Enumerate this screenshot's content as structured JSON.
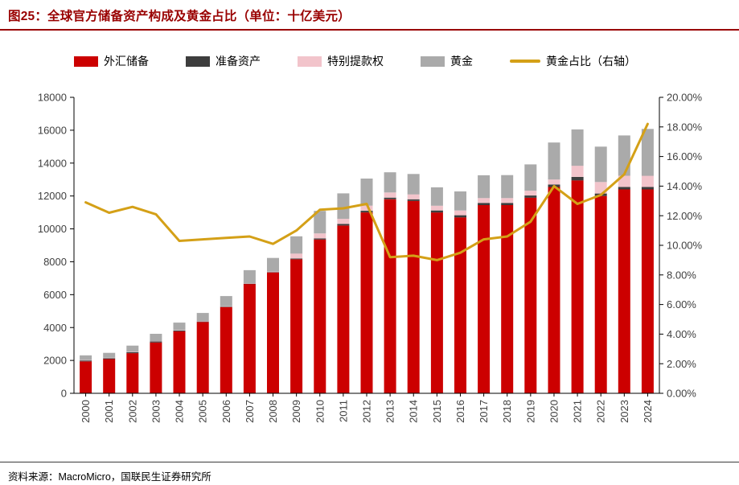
{
  "title": "图25：全球官方储备资产构成及黄金占比（单位：十亿美元）",
  "source": "资料来源：MacroMicro，国联民生证券研究所",
  "colors": {
    "title_red": "#990000",
    "fx": "#CC0000",
    "rp": "#3D3D3D",
    "sdr": "#F2C4CB",
    "gold": "#AAAAAA",
    "line": "#D4A017",
    "axis_text": "#3F3F3F",
    "spine": "#000000"
  },
  "chart_data": {
    "type": "bar",
    "subtype": "stacked-bars-with-line-dual-axis",
    "title": "全球官方储备资产构成及黄金占比",
    "unit": "十亿美元",
    "grid": false,
    "legend_position": "top",
    "categories": [
      "2000",
      "2001",
      "2002",
      "2003",
      "2004",
      "2005",
      "2006",
      "2007",
      "2008",
      "2009",
      "2010",
      "2011",
      "2012",
      "2013",
      "2014",
      "2015",
      "2016",
      "2017",
      "2018",
      "2019",
      "2020",
      "2021",
      "2022",
      "2023",
      "2024"
    ],
    "series": [
      {
        "name": "外汇储备",
        "type": "bar",
        "axis": "left",
        "color_key": "fx",
        "values": [
          1940,
          2080,
          2440,
          3090,
          3770,
          4340,
          5250,
          6650,
          7350,
          8150,
          9350,
          10200,
          11000,
          11800,
          11700,
          11000,
          10700,
          11450,
          11450,
          11900,
          12550,
          12950,
          12000,
          12400,
          12400
        ]
      },
      {
        "name": "准备资产",
        "type": "bar",
        "axis": "left",
        "color_key": "rp",
        "values": [
          55,
          55,
          65,
          65,
          55,
          30,
          20,
          15,
          25,
          50,
          65,
          100,
          100,
          100,
          100,
          120,
          130,
          130,
          130,
          130,
          150,
          210,
          150,
          150,
          150
        ]
      },
      {
        "name": "特别提款权",
        "type": "bar",
        "axis": "left",
        "color_key": "sdr",
        "values": [
          25,
          25,
          25,
          25,
          25,
          25,
          25,
          25,
          25,
          300,
          310,
          310,
          310,
          310,
          300,
          285,
          285,
          290,
          290,
          290,
          300,
          680,
          700,
          680,
          680
        ]
      },
      {
        "name": "黄金",
        "type": "bar",
        "axis": "left",
        "color_key": "gold",
        "values": [
          290,
          300,
          370,
          440,
          450,
          490,
          620,
          800,
          830,
          1050,
          1370,
          1550,
          1650,
          1230,
          1240,
          1120,
          1160,
          1390,
          1400,
          1600,
          2250,
          2210,
          2150,
          2450,
          2850
        ]
      },
      {
        "name": "黄金占比（右轴）",
        "type": "line",
        "axis": "right",
        "color_key": "line",
        "values_percent": [
          12.9,
          12.2,
          12.6,
          12.1,
          10.3,
          10.4,
          10.5,
          10.6,
          10.1,
          11.0,
          12.4,
          12.5,
          12.8,
          9.2,
          9.3,
          9.0,
          9.5,
          10.4,
          10.6,
          11.6,
          14.0,
          12.8,
          13.4,
          14.8,
          18.2
        ]
      }
    ],
    "left_axis": {
      "min": 0,
      "max": 18000,
      "tick_step": 2000,
      "tick_labels": [
        "0",
        "2000",
        "4000",
        "6000",
        "8000",
        "10000",
        "12000",
        "14000",
        "16000",
        "18000"
      ]
    },
    "right_axis": {
      "min": 0,
      "max": 20,
      "tick_step": 2,
      "tick_labels": [
        "0.00%",
        "2.00%",
        "4.00%",
        "6.00%",
        "8.00%",
        "10.00%",
        "12.00%",
        "14.00%",
        "16.00%",
        "18.00%",
        "20.00%"
      ]
    }
  }
}
